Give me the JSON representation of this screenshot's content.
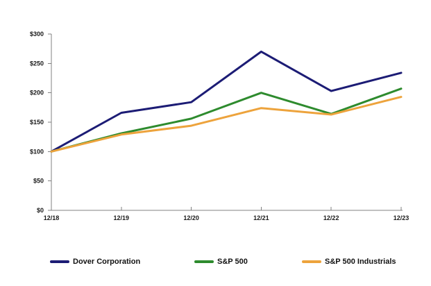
{
  "chart_data": {
    "type": "line",
    "title": "",
    "categories": [
      "12/18",
      "12/19",
      "12/20",
      "12/21",
      "12/22",
      "12/23"
    ],
    "series": [
      {
        "name": "Dover Corporation",
        "color": "#1C1C75",
        "values": [
          100,
          166,
          184,
          270,
          203,
          234
        ]
      },
      {
        "name": "S&P 500",
        "color": "#2E8B2E",
        "values": [
          100,
          131,
          156,
          200,
          164,
          207
        ]
      },
      {
        "name": "S&P 500 Industrials",
        "color": "#EDA33C",
        "values": [
          100,
          129,
          144,
          174,
          163,
          193
        ]
      }
    ],
    "y_axis": {
      "min": 0,
      "max": 300,
      "tick_step": 50,
      "tick_labels": [
        "$0",
        "$50",
        "$100",
        "$150",
        "$200",
        "$250",
        "$300"
      ]
    },
    "x_axis": {
      "tick_labels": [
        "12/18",
        "12/19",
        "12/20",
        "12/21",
        "12/22",
        "12/23"
      ]
    },
    "grid": false,
    "legend_position": "bottom",
    "axis_color": "#808080"
  }
}
